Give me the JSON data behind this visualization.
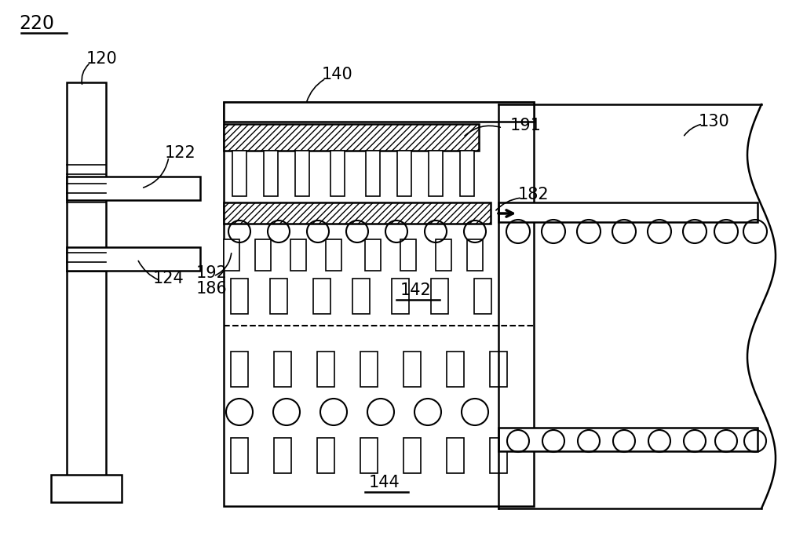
{
  "bg_color": "#ffffff",
  "line_color": "#000000",
  "label_220": "220",
  "label_120": "120",
  "label_122": "122",
  "label_124": "124",
  "label_140": "140",
  "label_130": "130",
  "label_191": "191",
  "label_182": "182",
  "label_192": "192",
  "label_186": "186",
  "label_142": "142",
  "label_144": "144"
}
